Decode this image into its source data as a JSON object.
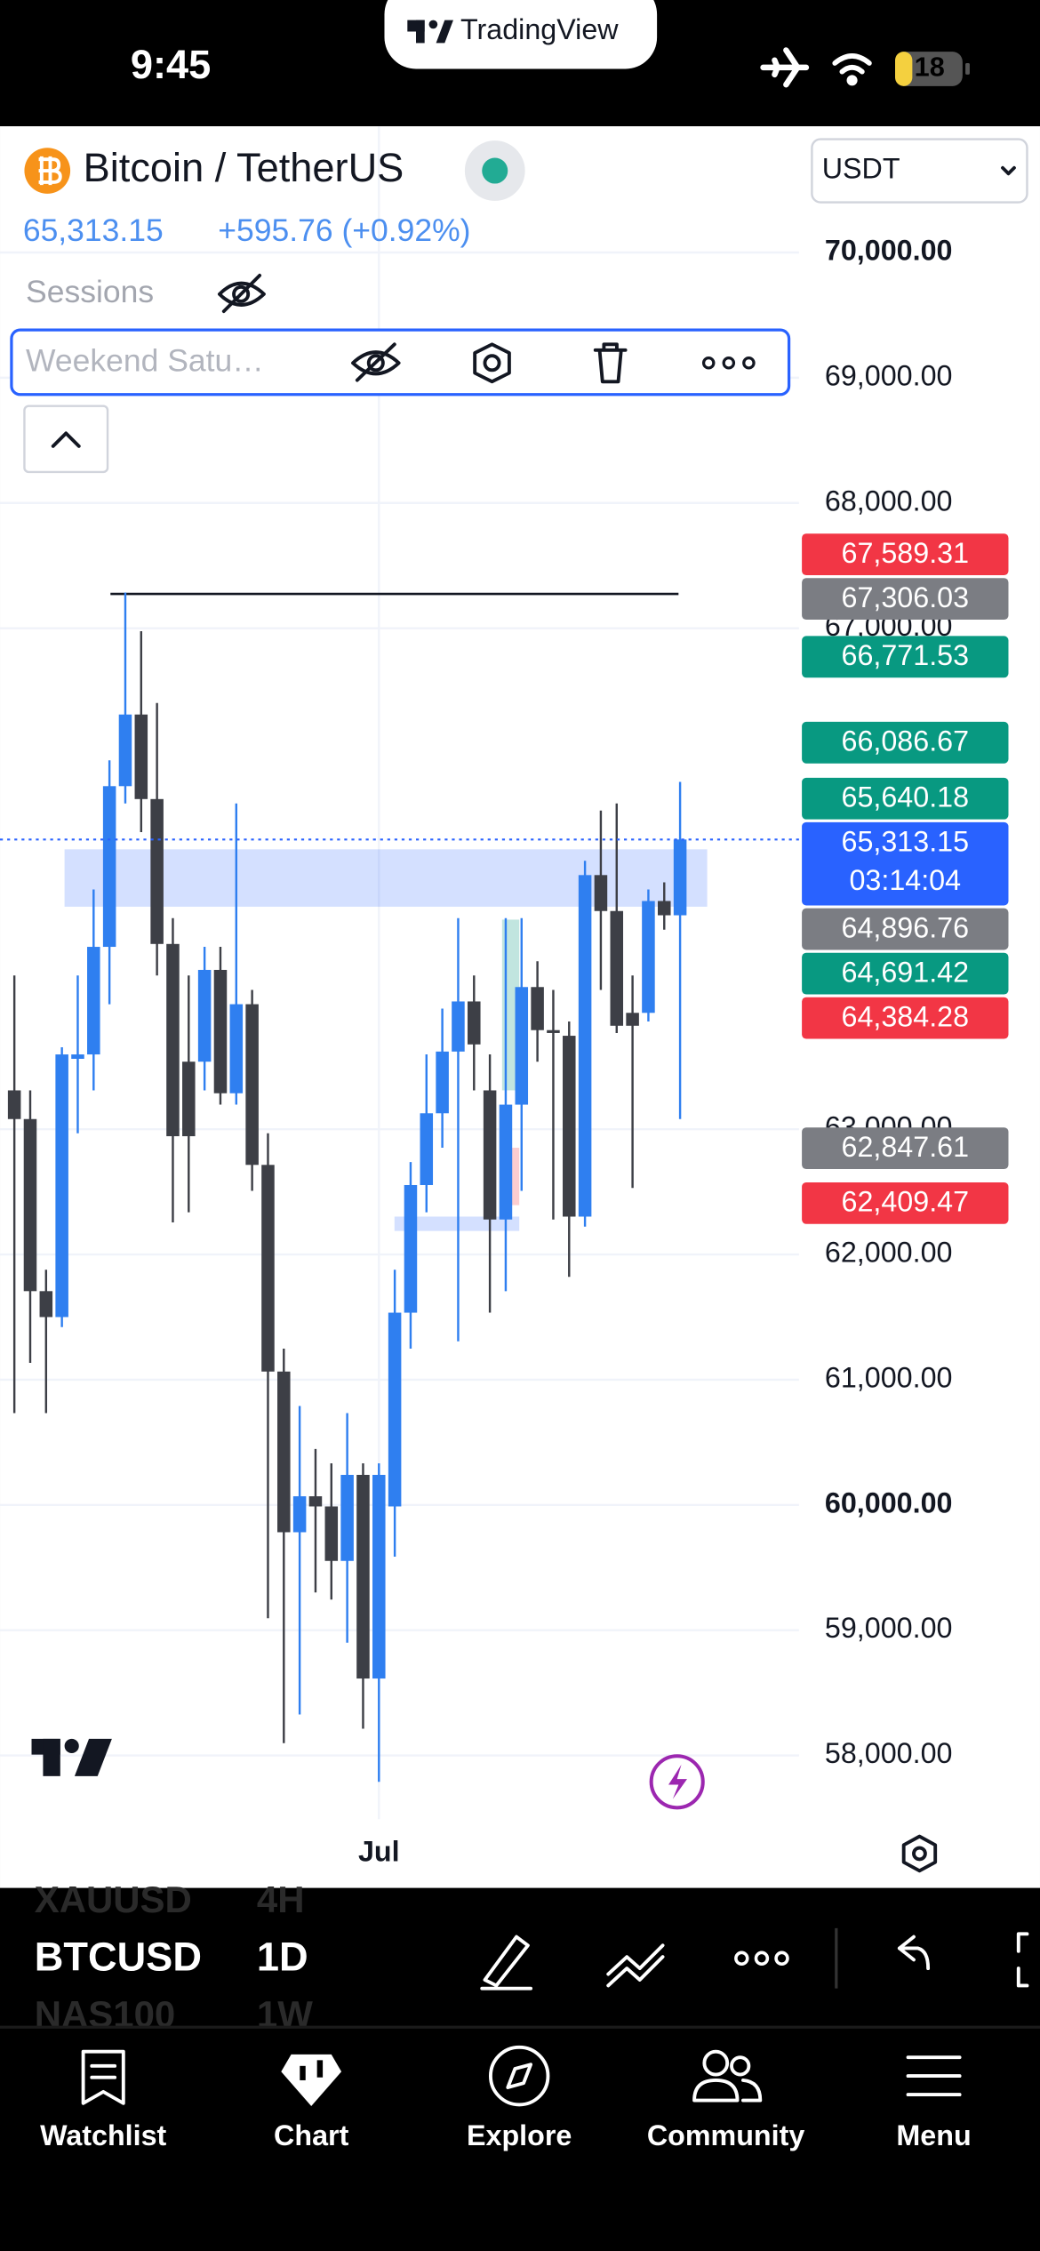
{
  "status_bar": {
    "time": "9:45",
    "battery": "18"
  },
  "app": {
    "name": "TradingView"
  },
  "header": {
    "symbol": "Bitcoin / TetherUS",
    "price": "65,313.15",
    "change": "+595.76 (+0.92%)",
    "currency": "USDT"
  },
  "indicators": {
    "sessions": "Sessions",
    "drawing": "Weekend Satu…"
  },
  "chart_data": {
    "type": "candlestick",
    "categories": [
      null,
      null,
      null,
      null,
      null,
      null,
      null,
      null,
      null,
      null,
      null,
      null,
      null,
      null,
      null,
      null,
      null,
      null,
      null,
      null,
      null,
      null,
      null,
      "Jul",
      null,
      null,
      null,
      null,
      null,
      null,
      null,
      null,
      null,
      null,
      null,
      null,
      null,
      null,
      null,
      null,
      null,
      null,
      null
    ],
    "open": [
      63310,
      63081,
      61707,
      61500,
      63562,
      63597,
      64456,
      65739,
      66311,
      65636,
      64479,
      63539,
      63539,
      64272,
      63287,
      63998,
      62715,
      61065,
      59782,
      60069,
      59988,
      59553,
      60240,
      58614,
      59988,
      61535,
      62554,
      63127,
      63620,
      64020,
      63310,
      62279,
      63196,
      64135,
      63791,
      63746,
      62302,
      65029,
      64742,
      63929,
      63929,
      64822,
      64708
    ],
    "high": [
      64227,
      63310,
      61878,
      63654,
      64227,
      64914,
      65945,
      67285,
      66976,
      66403,
      64685,
      64227,
      64456,
      64456,
      65601,
      64112,
      62967,
      61248,
      60790,
      60447,
      60332,
      60733,
      60332,
      60332,
      61878,
      62738,
      63597,
      63963,
      64685,
      64227,
      63597,
      64685,
      64685,
      64341,
      64112,
      63860,
      65143,
      65544,
      65601,
      64227,
      64914,
      64971,
      65773
    ],
    "low": [
      60733,
      61134,
      60733,
      61420,
      62967,
      63310,
      63998,
      65601,
      65372,
      64227,
      62256,
      62337,
      63310,
      63196,
      63196,
      62508,
      59095,
      58098,
      58327,
      59301,
      59244,
      58900,
      58213,
      57789,
      59587,
      61248,
      62337,
      62852,
      61306,
      63310,
      61535,
      61707,
      62508,
      63539,
      62279,
      61821,
      62222,
      64112,
      63768,
      62531,
      63860,
      64593,
      63081
    ],
    "close": [
      63081,
      61707,
      61500,
      63597,
      63597,
      64456,
      65739,
      66311,
      65636,
      64479,
      62944,
      62944,
      64272,
      63287,
      63998,
      62715,
      61065,
      59782,
      60069,
      59988,
      59553,
      60240,
      58614,
      60240,
      61535,
      62554,
      63127,
      63620,
      64020,
      63677,
      62279,
      63196,
      64135,
      63791,
      63768,
      62302,
      65029,
      64742,
      63826,
      63826,
      64822,
      64708,
      65313.15
    ],
    "up_color": "#2f7ff0",
    "down_color": "#3d3f46",
    "ylim": [
      57491,
      71008
    ],
    "yticks": [
      {
        "value": 58000,
        "label": "58,000.00"
      },
      {
        "value": 59000,
        "label": "59,000.00"
      },
      {
        "value": 60000,
        "label": "60,000.00"
      },
      {
        "value": 61000,
        "label": "61,000.00"
      },
      {
        "value": 62000,
        "label": "62,000.00"
      },
      {
        "value": 63000,
        "label": "63,000.00"
      },
      {
        "value": 67000,
        "label": "67,000.00"
      },
      {
        "value": 68000,
        "label": "68,000.00"
      },
      {
        "value": 69000,
        "label": "69,000.00"
      },
      {
        "value": 70000,
        "label": "70,000.00"
      }
    ],
    "grid": true,
    "current_price": 65313.15,
    "price_labels": [
      {
        "value": 67589.31,
        "label": "67,589.31",
        "color": "#f23645"
      },
      {
        "value": 67306.03,
        "label": "67,306.03",
        "color": "#7b7d83"
      },
      {
        "value": 66771.53,
        "label": "66,771.53",
        "color": "#089981"
      },
      {
        "value": 66086.67,
        "label": "66,086.67",
        "color": "#089981"
      },
      {
        "value": 65640.18,
        "label": "65,640.18",
        "color": "#089981"
      },
      {
        "value": 65313.15,
        "label": "65,313.15",
        "sublabel": "03:14:04",
        "color": "#2962ff"
      },
      {
        "value": 64896.76,
        "label": "64,896.76",
        "color": "#7b7d83"
      },
      {
        "value": 64691.42,
        "label": "64,691.42",
        "color": "#089981"
      },
      {
        "value": 64384.28,
        "label": "64,384.28",
        "color": "#f23645"
      },
      {
        "value": 62847.61,
        "label": "62,847.61",
        "color": "#7b7d83"
      },
      {
        "value": 62409.47,
        "label": "62,409.47",
        "color": "#f23645"
      }
    ]
  },
  "toolbar": {
    "symbol": "BTCUSD",
    "interval": "1D",
    "prev_symbol": "XAUUSD",
    "prev_interval": "4H",
    "next_symbol": "NAS100",
    "next_interval": "1W"
  },
  "nav": [
    "Watchlist",
    "Chart",
    "Explore",
    "Community",
    "Menu"
  ]
}
